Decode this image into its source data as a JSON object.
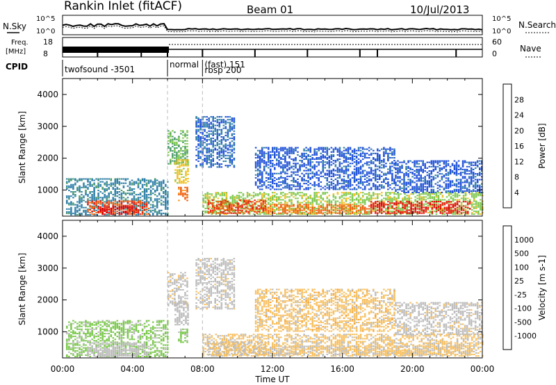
{
  "header": {
    "title": "Rankin Inlet (fitACF)",
    "beam": "Beam 01",
    "date": "10/Jul/2013"
  },
  "labels": {
    "nsky": "N.Sky",
    "nsky_exp_top": "10^5",
    "nsky_exp_bot": "10^0",
    "nsearch": "N.Search",
    "nsearch_exp_top": "10^5",
    "nsearch_exp_bot": "10^0",
    "freq_line1": "Freq.",
    "freq_line2": "[MHz]",
    "freq_top": "18",
    "freq_bot": "8",
    "nave": "Nave",
    "nave_top": "60",
    "nave_bot": "0",
    "cpid": "CPID"
  },
  "cpid_segments": [
    {
      "start_hour": 0,
      "end_hour": 6,
      "label": "twofsound -3501"
    },
    {
      "start_hour": 6,
      "end_hour": 8,
      "label": "normal"
    },
    {
      "start_hour": 8,
      "end_hour": 24,
      "label": "(fast) 151",
      "label2": "rbsp 200"
    }
  ],
  "chart_data": [
    {
      "type": "heatmap",
      "title": "",
      "xlabel": "",
      "ylabel": "Slant Range [km]",
      "xlim": [
        0,
        24
      ],
      "ylim": [
        180,
        4500
      ],
      "yticks": [
        1000,
        2000,
        3000,
        4000
      ],
      "colorbar": {
        "label": "Power [dB]",
        "range": [
          0,
          30
        ],
        "ticks": [
          "4",
          "8",
          "12",
          "16",
          "20",
          "24",
          "28"
        ],
        "colors": [
          "#0000ff",
          "#1f4fd8",
          "#2f7fa8",
          "#4a9a6a",
          "#7ec850",
          "#f0c020",
          "#f59a20",
          "#ef6010",
          "#e82010",
          "#d80000"
        ]
      },
      "regions": [
        {
          "x0": 0.2,
          "x1": 6.0,
          "y0": 200,
          "y1": 1350,
          "value": 8
        },
        {
          "x0": 1.4,
          "x1": 4.9,
          "y0": 220,
          "y1": 650,
          "value": 24
        },
        {
          "x0": 2.0,
          "x1": 4.2,
          "y0": 220,
          "y1": 480,
          "value": 28
        },
        {
          "x0": 6.0,
          "x1": 7.1,
          "y0": 1800,
          "y1": 2850,
          "value": 12
        },
        {
          "x0": 6.4,
          "x1": 7.2,
          "y0": 1200,
          "y1": 1950,
          "value": 16
        },
        {
          "x0": 6.6,
          "x1": 7.1,
          "y0": 650,
          "y1": 1100,
          "value": 22
        },
        {
          "x0": 7.6,
          "x1": 9.8,
          "y0": 1700,
          "y1": 3300,
          "value": 6
        },
        {
          "x0": 8.0,
          "x1": 24.0,
          "y0": 220,
          "y1": 920,
          "value": 14
        },
        {
          "x0": 8.3,
          "x1": 11.6,
          "y0": 250,
          "y1": 700,
          "value": 24
        },
        {
          "x0": 11.6,
          "x1": 17.6,
          "y0": 250,
          "y1": 560,
          "value": 22
        },
        {
          "x0": 17.6,
          "x1": 23.3,
          "y0": 250,
          "y1": 640,
          "value": 26
        },
        {
          "x0": 11.0,
          "x1": 19.0,
          "y0": 1000,
          "y1": 2350,
          "value": 5
        },
        {
          "x0": 19.0,
          "x1": 24.0,
          "y0": 900,
          "y1": 1900,
          "value": 5
        }
      ]
    },
    {
      "type": "heatmap",
      "title": "",
      "xlabel": "Time UT",
      "ylabel": "Slant Range [km]",
      "xlim": [
        0,
        24
      ],
      "ylim": [
        180,
        4500
      ],
      "yticks": [
        1000,
        2000,
        3000,
        4000
      ],
      "xticks": [
        "00:00",
        "04:00",
        "08:00",
        "12:00",
        "16:00",
        "20:00",
        "00:00"
      ],
      "colorbar": {
        "label": "Velocity [m s-1]",
        "range": [
          -1200,
          1200
        ],
        "ticks": [
          "1000",
          "500",
          "100",
          "25",
          "-25",
          "-100",
          "-500",
          "-1000"
        ],
        "colors": [
          "#dd0000",
          "#ee4400",
          "#f07a10",
          "#f5a030",
          "#f7c060",
          "#bdbdbd",
          "#bdbdbd",
          "#78c848",
          "#3f9a50",
          "#2f78b0",
          "#1f3fc0"
        ]
      },
      "regions": [
        {
          "x0": 0.2,
          "x1": 6.0,
          "y0": 200,
          "y1": 1350,
          "value": 400
        },
        {
          "x0": 1.4,
          "x1": 4.9,
          "y0": 220,
          "y1": 650,
          "value": 80
        },
        {
          "x0": 2.0,
          "x1": 4.2,
          "y0": 220,
          "y1": 480,
          "value": 120
        },
        {
          "x0": 6.0,
          "x1": 7.1,
          "y0": 1800,
          "y1": 2850,
          "value": 0
        },
        {
          "x0": 6.4,
          "x1": 7.2,
          "y0": 1200,
          "y1": 1950,
          "value": 60
        },
        {
          "x0": 6.6,
          "x1": 7.1,
          "y0": 650,
          "y1": 1100,
          "value": 400
        },
        {
          "x0": 7.6,
          "x1": 9.8,
          "y0": 1700,
          "y1": 3300,
          "value": 0
        },
        {
          "x0": 8.0,
          "x1": 24.0,
          "y0": 220,
          "y1": 920,
          "value": -150
        },
        {
          "x0": 8.3,
          "x1": 11.6,
          "y0": 250,
          "y1": 700,
          "value": -80
        },
        {
          "x0": 11.6,
          "x1": 17.6,
          "y0": 250,
          "y1": 560,
          "value": -120
        },
        {
          "x0": 17.6,
          "x1": 23.3,
          "y0": 250,
          "y1": 640,
          "value": -160
        },
        {
          "x0": 11.0,
          "x1": 19.0,
          "y0": 1000,
          "y1": 2350,
          "value": -200
        },
        {
          "x0": 19.0,
          "x1": 24.0,
          "y0": 900,
          "y1": 1900,
          "value": 0
        }
      ]
    }
  ]
}
